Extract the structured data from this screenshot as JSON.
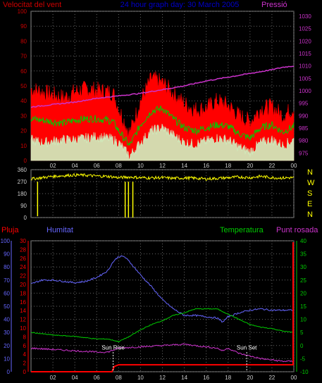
{
  "header": {
    "left_title": "Velocitat del vent",
    "center_title": "24 hour graph day: 30 March 2005",
    "right_title": "Pressió"
  },
  "colors": {
    "wind_gust": "#ff0000",
    "wind_avg": "#00cc00",
    "wind_min": "#ccffcc",
    "pressure": "#cc33cc",
    "direction": "#ffff00",
    "humidity": "#6666ff",
    "temperature": "#00cc00",
    "dew_point": "#cc33cc",
    "rain": "#ff0000",
    "axis_left": "#cc0000",
    "axis_right": "#cc33cc",
    "axis_green": "#00cc00",
    "grid": "#666666",
    "title_center": "#0000cc"
  },
  "chart_data": [
    {
      "type": "line",
      "title": "24 hour graph day: 30 March 2005",
      "x_ticks": [
        "02",
        "04",
        "06",
        "08",
        "10",
        "12",
        "14",
        "16",
        "18",
        "20",
        "22",
        "00"
      ],
      "left_axis": {
        "label": "Velocitat del vent",
        "ticks": [
          0,
          10,
          20,
          30,
          40,
          50,
          60,
          70,
          80,
          90,
          100
        ],
        "ylim": [
          0,
          100
        ]
      },
      "right_axis": {
        "label": "Pressió",
        "ticks": [
          975,
          980,
          985,
          990,
          995,
          1000,
          1005,
          1010,
          1015,
          1020,
          1025,
          1030
        ],
        "ylim": [
          972,
          1032
        ]
      },
      "series": [
        {
          "name": "gust",
          "hours": [
            0,
            1,
            2,
            3,
            4,
            5,
            6,
            7,
            7.5,
            8,
            9,
            10,
            11,
            12,
            13,
            14,
            15,
            16,
            17,
            18,
            19,
            20,
            21,
            22,
            23,
            24
          ],
          "values": [
            48,
            46,
            44,
            42,
            46,
            48,
            47,
            46,
            45,
            35,
            18,
            40,
            55,
            52,
            45,
            38,
            34,
            35,
            40,
            37,
            30,
            26,
            35,
            36,
            30,
            35
          ]
        },
        {
          "name": "average",
          "hours": [
            0,
            1,
            2,
            3,
            4,
            5,
            6,
            7,
            7.5,
            8,
            9,
            10,
            11,
            12,
            13,
            14,
            15,
            16,
            17,
            18,
            19,
            20,
            21,
            22,
            23,
            24
          ],
          "values": [
            28,
            27,
            26,
            25,
            27,
            28,
            28,
            27,
            26,
            20,
            10,
            24,
            33,
            35,
            28,
            22,
            20,
            22,
            24,
            23,
            18,
            15,
            22,
            24,
            19,
            23
          ]
        },
        {
          "name": "minimum",
          "hours": [
            0,
            1,
            2,
            3,
            4,
            5,
            6,
            7,
            7.5,
            8,
            9,
            10,
            11,
            12,
            13,
            14,
            15,
            16,
            17,
            18,
            19,
            20,
            21,
            22,
            23,
            24
          ],
          "values": [
            14,
            12,
            13,
            14,
            14,
            15,
            16,
            15,
            14,
            12,
            3,
            12,
            20,
            22,
            17,
            12,
            11,
            13,
            15,
            14,
            9,
            6,
            12,
            14,
            10,
            14
          ]
        },
        {
          "name": "pressure",
          "hours": [
            0,
            2,
            4,
            6,
            8,
            10,
            12,
            14,
            16,
            18,
            20,
            22,
            23,
            24
          ],
          "values": [
            993.5,
            994.5,
            995.5,
            997,
            998,
            999,
            1000.5,
            1002,
            1004,
            1005.5,
            1007,
            1008.5,
            1009.5,
            1010
          ]
        }
      ]
    },
    {
      "type": "line",
      "left_axis": {
        "ticks": [
          0,
          90,
          180,
          270,
          360
        ],
        "ylim": [
          0,
          360
        ]
      },
      "right_axis_labels": [
        "N",
        "W",
        "S",
        "E",
        "N"
      ],
      "series": [
        {
          "name": "direction",
          "hours": [
            0,
            1,
            2,
            3,
            4,
            5,
            6,
            7,
            8,
            9,
            10,
            11,
            12,
            13,
            14,
            15,
            16,
            17,
            18,
            19,
            20,
            21,
            22,
            23,
            24
          ],
          "values": [
            290,
            300,
            310,
            315,
            320,
            318,
            312,
            310,
            300,
            305,
            300,
            298,
            300,
            295,
            298,
            296,
            290,
            295,
            300,
            305,
            300,
            310,
            300,
            298,
            300
          ]
        }
      ],
      "spikes": [
        {
          "hour": 0.6,
          "value": 10
        },
        {
          "hour": 8.6,
          "value": 0
        },
        {
          "hour": 8.9,
          "value": 0
        },
        {
          "hour": 9.3,
          "value": 0
        }
      ]
    },
    {
      "type": "line",
      "top_labels": [
        "Pluja",
        "Humitat",
        "Temperatura",
        "Punt rosada"
      ],
      "rain_axis": {
        "ticks": [
          0,
          2,
          4,
          6,
          8,
          10,
          12,
          14,
          16,
          18,
          20,
          22,
          24,
          26,
          28,
          30
        ],
        "ylim": [
          0,
          30
        ]
      },
      "humidity_axis": {
        "ticks": [
          0,
          10,
          20,
          30,
          40,
          50,
          60,
          70,
          80,
          90,
          100
        ],
        "ylim": [
          0,
          100
        ]
      },
      "temperature_axis": {
        "ticks": [
          -10,
          -5,
          0,
          5,
          10,
          15,
          20,
          25,
          30,
          35,
          40
        ],
        "ylim": [
          -10,
          40
        ]
      },
      "annotations": [
        {
          "text": "Sun Rise",
          "hour": 7.5
        },
        {
          "text": "Sun Set",
          "hour": 19.7
        }
      ],
      "series": [
        {
          "name": "humidity",
          "hours": [
            0,
            1,
            2,
            3,
            4,
            5,
            6,
            7,
            7.5,
            8,
            8.5,
            9,
            10,
            11,
            12,
            13,
            14,
            15,
            16,
            17,
            17.5,
            18,
            19,
            20,
            21,
            22,
            23,
            24
          ],
          "values": [
            67,
            70,
            70,
            69,
            68,
            69,
            72,
            77,
            84,
            88,
            88,
            84,
            74,
            65,
            55,
            48,
            43,
            43,
            42,
            41,
            38,
            42,
            45,
            47,
            48,
            47,
            47,
            47
          ]
        },
        {
          "name": "temperature",
          "hours": [
            0,
            2,
            4,
            6,
            7,
            8,
            9,
            10,
            11,
            12,
            13,
            14,
            15,
            16,
            17,
            18,
            19,
            20,
            21,
            22,
            23,
            24
          ],
          "values": [
            5,
            4,
            3.5,
            2.5,
            2.5,
            1.5,
            3.5,
            6,
            8,
            9.5,
            11.5,
            12.5,
            14,
            14,
            14,
            12,
            10,
            8,
            7,
            6.5,
            5.5,
            5
          ]
        },
        {
          "name": "dew_point",
          "hours": [
            0,
            2,
            4,
            6,
            7,
            8,
            10,
            12,
            14,
            15,
            16,
            17,
            17.5,
            18,
            19,
            20,
            21,
            22,
            23,
            24
          ],
          "values": [
            -1,
            -1.5,
            -2,
            -2.5,
            -2.5,
            -1,
            -0.5,
            0,
            0.5,
            0,
            -0.5,
            -1,
            -2,
            -1,
            -3,
            -4,
            -5,
            -5.5,
            -6,
            -6
          ]
        },
        {
          "name": "rain",
          "hours": [
            0,
            7.4,
            7.6,
            8,
            9,
            10,
            24
          ],
          "values": [
            0,
            0,
            1.2,
            1.6,
            1.6,
            1.6,
            1.6
          ]
        }
      ]
    }
  ]
}
